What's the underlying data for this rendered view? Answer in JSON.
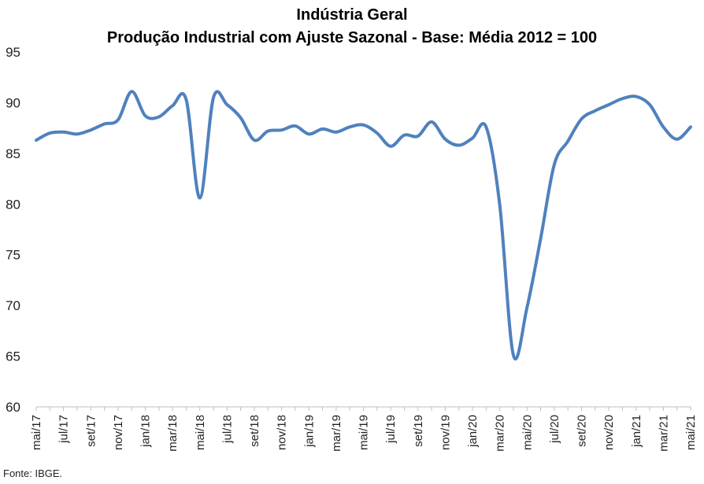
{
  "title_line1": "Indústria Geral",
  "title_line2": "Produção Industrial com Ajuste Sazonal - Base: Média 2012 = 100",
  "source": "Fonte: IBGE.",
  "chart_data": {
    "type": "line",
    "title": "Indústria Geral",
    "subtitle": "Produção Industrial com Ajuste Sazonal - Base: Média 2012 = 100",
    "xlabel": "",
    "ylabel": "",
    "ylim": [
      60,
      95
    ],
    "yticks": [
      60,
      65,
      70,
      75,
      80,
      85,
      90,
      95
    ],
    "grid": false,
    "legend": "none",
    "line_color": "#4f81bd",
    "x": [
      "mai/17",
      "jun/17",
      "jul/17",
      "ago/17",
      "set/17",
      "out/17",
      "nov/17",
      "dez/17",
      "jan/18",
      "fev/18",
      "mar/18",
      "abr/18",
      "mai/18",
      "jun/18",
      "jul/18",
      "ago/18",
      "set/18",
      "out/18",
      "nov/18",
      "dez/18",
      "jan/19",
      "fev/19",
      "mar/19",
      "abr/19",
      "mai/19",
      "jun/19",
      "jul/19",
      "ago/19",
      "set/19",
      "out/19",
      "nov/19",
      "dez/19",
      "jan/20",
      "fev/20",
      "mar/20",
      "abr/20",
      "mai/20",
      "jun/20",
      "jul/20",
      "ago/20",
      "set/20",
      "out/20",
      "nov/20",
      "dez/20",
      "jan/21",
      "fev/21",
      "mar/21",
      "abr/21",
      "mai/21"
    ],
    "xtick_labels": [
      "mai/17",
      "jul/17",
      "set/17",
      "nov/17",
      "jan/18",
      "mar/18",
      "mai/18",
      "jul/18",
      "set/18",
      "nov/18",
      "jan/19",
      "mar/19",
      "mai/19",
      "jul/19",
      "set/19",
      "nov/19",
      "jan/20",
      "mar/20",
      "mai/20",
      "jul/20",
      "set/20",
      "nov/20",
      "jan/21",
      "mar/21",
      "mai/21"
    ],
    "series": [
      {
        "values": [
          86.3,
          87.0,
          87.1,
          86.9,
          87.3,
          87.9,
          88.3,
          91.1,
          88.7,
          88.6,
          89.7,
          90.3,
          80.6,
          90.5,
          89.8,
          88.5,
          86.3,
          87.2,
          87.3,
          87.7,
          86.9,
          87.4,
          87.1,
          87.6,
          87.8,
          87.0,
          85.7,
          86.8,
          86.7,
          88.1,
          86.4,
          85.8,
          86.5,
          87.6,
          79.9,
          65.1,
          69.8,
          76.6,
          83.9,
          86.2,
          88.4,
          89.2,
          89.8,
          90.4,
          90.6,
          89.8,
          87.6,
          86.4,
          87.6
        ]
      }
    ]
  }
}
